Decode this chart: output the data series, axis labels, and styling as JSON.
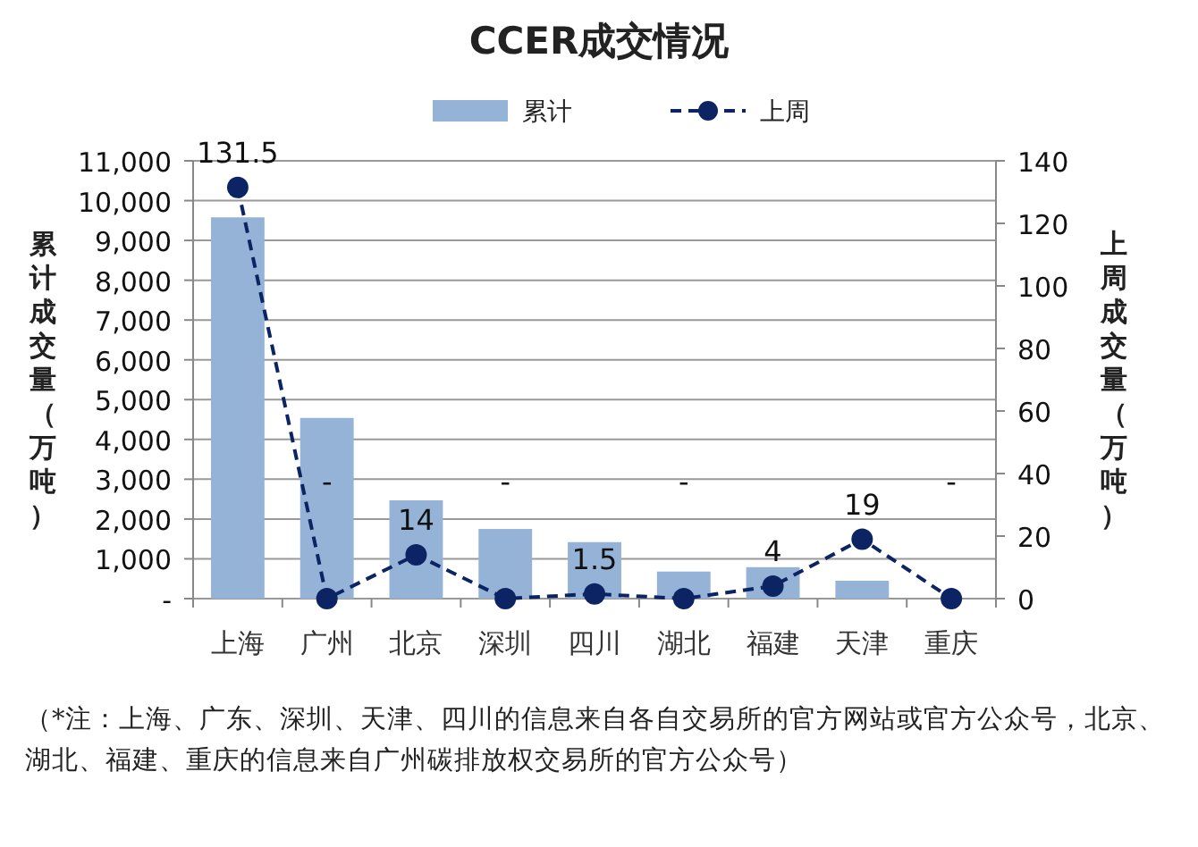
{
  "chart_data": {
    "type": "bar",
    "title": "CCER成交情况",
    "categories": [
      "上海",
      "广州",
      "北京",
      "深圳",
      "四川",
      "湖北",
      "福建",
      "天津",
      "重庆"
    ],
    "series": [
      {
        "name": "累计",
        "color": "#95b3d7",
        "values": [
          9580,
          4540,
          2470,
          1750,
          1420,
          680,
          790,
          450,
          0
        ]
      },
      {
        "name": "上周",
        "type": "line",
        "axis": "y2",
        "color": "#0c2463",
        "marker": "circle",
        "line_style": "dashed",
        "values": [
          131.5,
          0,
          14,
          0,
          1.5,
          0,
          4,
          19,
          0
        ],
        "value_labels": [
          "131.5",
          "-",
          "14",
          "-",
          "1.5",
          "-",
          "4",
          "19",
          "-"
        ]
      }
    ],
    "ylabel": "累计成交量（万吨）",
    "y2label": "上周成交量（万吨）",
    "ylim": [
      0,
      11000
    ],
    "yticks": [
      {
        "value": 0,
        "label": "-"
      },
      {
        "value": 1000,
        "label": "1,000"
      },
      {
        "value": 2000,
        "label": "2,000"
      },
      {
        "value": 3000,
        "label": "3,000"
      },
      {
        "value": 4000,
        "label": "4,000"
      },
      {
        "value": 5000,
        "label": "5,000"
      },
      {
        "value": 6000,
        "label": "6,000"
      },
      {
        "value": 7000,
        "label": "7,000"
      },
      {
        "value": 8000,
        "label": "8,000"
      },
      {
        "value": 9000,
        "label": "9,000"
      },
      {
        "value": 10000,
        "label": "10,000"
      },
      {
        "value": 11000,
        "label": "11,000"
      }
    ],
    "y2lim": [
      0,
      140
    ],
    "y2ticks": [
      0,
      20,
      40,
      60,
      80,
      100,
      120,
      140
    ],
    "grid": "y",
    "legend": "top",
    "annotations": [
      "（*注：上海、广东、深圳、天津、四川的信息来自各自交易所的官方网站或官方公众号，北京、湖北、福建、重庆的信息来自广州碳排放权交易所的官方公众号）"
    ]
  }
}
